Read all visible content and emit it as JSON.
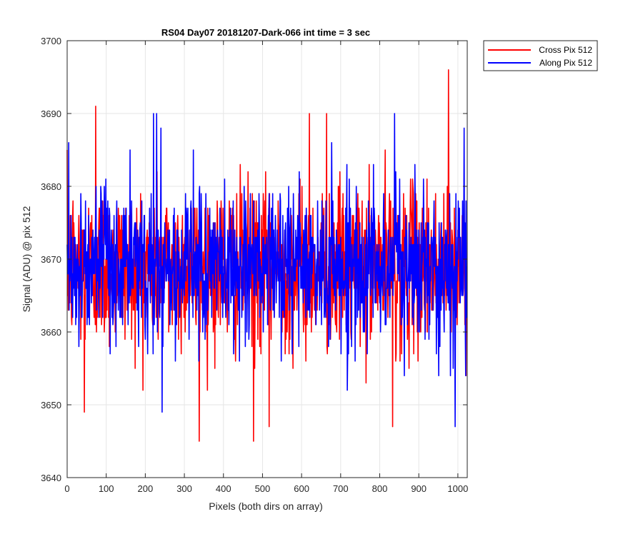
{
  "chart_data": {
    "type": "line",
    "title": "RS04 Day07 20181207-Dark-066 int time = 3 sec",
    "xlabel": "Pixels (both dirs on array)",
    "ylabel": "Signal (ADU) @ pix 512",
    "xlim": [
      0,
      1024
    ],
    "ylim": [
      3640,
      3700
    ],
    "xticks": [
      0,
      100,
      200,
      300,
      400,
      500,
      600,
      700,
      800,
      900,
      1000
    ],
    "yticks": [
      3640,
      3650,
      3660,
      3670,
      3680,
      3690,
      3700
    ],
    "grid": true,
    "legend": {
      "location": "outside-top-right"
    },
    "x_step": 1,
    "series": [
      {
        "name": "Cross Pix 512",
        "color": "#ff0000",
        "description": "noisy dark-frame signal, approx mean 3669 ADU, std ~5.5 ADU; notable extremes read from figure",
        "mean": 3669,
        "notable_points": [
          {
            "x": 73,
            "y": 3691
          },
          {
            "x": 44,
            "y": 3649
          },
          {
            "x": 338,
            "y": 3645
          },
          {
            "x": 477,
            "y": 3645
          },
          {
            "x": 517,
            "y": 3647
          },
          {
            "x": 620,
            "y": 3690
          },
          {
            "x": 664,
            "y": 3690
          },
          {
            "x": 833,
            "y": 3647
          },
          {
            "x": 976,
            "y": 3696
          }
        ],
        "values": [
          3663,
          3664,
          3672,
          3660,
          3675,
          3663,
          3667,
          3664,
          3666,
          3670,
          3672,
          3682,
          3663,
          3658,
          3666,
          3660,
          3671,
          3677,
          3658,
          3663,
          3666,
          3663,
          3666,
          3664,
          3661,
          3673,
          3667,
          3665,
          3667,
          3672,
          3669,
          3665,
          3661,
          3667,
          3668,
          3669,
          3662,
          3672,
          3668,
          3664,
          3677,
          3666,
          3664,
          3664,
          3670,
          3664,
          3670,
          3675,
          3665,
          3663,
          3661,
          3668,
          3664,
          3665,
          3671,
          3667,
          3673,
          3667,
          3666,
          3676,
          3675,
          3665,
          3665,
          3678,
          3672,
          3681,
          3669,
          3673,
          3663,
          3677,
          3665,
          3674,
          3672,
          3669,
          3663,
          3664,
          3676,
          3673,
          3667,
          3671,
          3674,
          3671,
          3670,
          3677,
          3664,
          3666,
          3665,
          3664,
          3672,
          3659,
          3676,
          3662,
          3663,
          3667,
          3661,
          3662,
          3669,
          3672,
          3666,
          3675,
          3677,
          3664,
          3662,
          3664,
          3666,
          3667,
          3667,
          3676,
          3661,
          3677,
          3669,
          3666,
          3670,
          3675,
          3675,
          3670,
          3661,
          3668,
          3670,
          3671,
          3668,
          3670,
          3664,
          3672,
          3665,
          3667,
          3671,
          3674,
          3669,
          3671,
          3676,
          3668,
          3673,
          3670,
          3670,
          3670,
          3674,
          3672,
          3668,
          3666,
          3665,
          3671,
          3674,
          3667,
          3669,
          3666,
          3659,
          3675,
          3671,
          3673,
          3661,
          3672,
          3672,
          3663,
          3667,
          3673,
          3671,
          3667,
          3673,
          3672,
          3668,
          3668,
          3675,
          3673,
          3670,
          3672,
          3663,
          3666,
          3660,
          3674,
          3663,
          3667,
          3668,
          3668,
          3677,
          3676,
          3662,
          3666,
          3668,
          3677,
          3676,
          3662,
          3668,
          3668,
          3665,
          3664,
          3665,
          3662,
          3659,
          3665,
          3672,
          3669,
          3667,
          3669,
          3669,
          3665,
          3672,
          3670,
          3666,
          3672,
          3670,
          3673,
          3671,
          3671,
          3665,
          3677,
          3666,
          3669,
          3664,
          3671,
          3673,
          3669,
          3675,
          3669,
          3670,
          3669,
          3667,
          3666,
          3665,
          3674,
          3665,
          3667,
          3673,
          3670,
          3664,
          3671,
          3662,
          3665,
          3674,
          3662,
          3662,
          3676,
          3667,
          3668,
          3664,
          3670,
          3667,
          3670,
          3674,
          3667,
          3675,
          3661,
          3668,
          3662,
          3669,
          3674,
          3668,
          3673,
          3663,
          3667,
          3670,
          3670,
          3673,
          3669,
          3673,
          3665,
          3666,
          3661,
          3670,
          3664,
          3666,
          3668,
          3663,
          3662,
          3673,
          3674,
          3670,
          3668,
          3671,
          3670,
          3669,
          3668,
          3671,
          3675,
          3667,
          3668,
          3669,
          3680,
          3666,
          3666,
          3665,
          3677,
          3671,
          3667,
          3675,
          3670,
          3674,
          3665,
          3673,
          3670,
          3672,
          3670,
          3666,
          3662,
          3676,
          3672,
          3670,
          3668,
          3662,
          3668,
          3663,
          3665,
          3668,
          3673,
          3669,
          3671,
          3664,
          3672,
          3668,
          3669,
          3661,
          3671,
          3665,
          3666,
          3669,
          3676,
          3669,
          3670,
          3669,
          3675,
          3669,
          3670,
          3670,
          3671,
          3664,
          3670,
          3670,
          3678,
          3677,
          3670,
          3668,
          3669,
          3677,
          3664,
          3665,
          3675,
          3670,
          3668,
          3664,
          3671,
          3668,
          3666,
          3667,
          3672,
          3671,
          3667,
          3661,
          3667,
          3669,
          3670,
          3672,
          3671,
          3672,
          3671,
          3665,
          3663,
          3674,
          3668,
          3668,
          3665,
          3665,
          3662,
          3670,
          3674,
          3665,
          3675,
          3676,
          3669,
          3673,
          3671,
          3669,
          3670,
          3667,
          3671,
          3667,
          3664,
          3668,
          3672,
          3670,
          3670,
          3674,
          3670,
          3664,
          3669,
          3666,
          3668,
          3675,
          3673,
          3668,
          3668,
          3668,
          3671,
          3674,
          3667,
          3674,
          3669,
          3675,
          3672,
          3675,
          3667,
          3672,
          3670,
          3662,
          3669,
          3667,
          3668,
          3671,
          3670,
          3671,
          3671,
          3671,
          3669,
          3664,
          3671,
          3667,
          3666,
          3670,
          3665,
          3675,
          3668,
          3669,
          3667,
          3671,
          3669,
          3673,
          3673,
          3666,
          3670,
          3667,
          3672,
          3668,
          3670,
          3671,
          3671,
          3667,
          3670,
          3670,
          3670,
          3671,
          3675,
          3665,
          3669,
          3669,
          3671,
          3670,
          3673,
          3670,
          3665,
          3671,
          3672,
          3670,
          3668,
          3666,
          3669,
          3671,
          3666,
          3666,
          3671,
          3667,
          3674,
          3668,
          3669,
          3670,
          3670,
          3674,
          3670,
          3670,
          3671,
          3673,
          3665,
          3672,
          3667,
          3671,
          3669,
          3673,
          3672,
          3667,
          3669,
          3673,
          3668,
          3669,
          3666,
          3669,
          3671,
          3674,
          3667,
          3672,
          3666,
          3669,
          3670,
          3666,
          3670,
          3668,
          3669,
          3674,
          3668,
          3668,
          3669,
          3668,
          3664,
          3668,
          3671,
          3675,
          3669,
          3670,
          3669,
          3669,
          3668,
          3671,
          3667,
          3666,
          3667,
          3670,
          3667,
          3669,
          3664,
          3671,
          3667,
          3672,
          3670,
          3669,
          3666,
          3671,
          3670,
          3672,
          3668,
          3671,
          3669,
          3673,
          3664,
          3667,
          3673,
          3667,
          3670,
          3674,
          3668,
          3667,
          3671,
          3671,
          3673,
          3671,
          3665,
          3676,
          3668,
          3673,
          3672,
          3667,
          3673,
          3670,
          3670,
          3672,
          3670,
          3667,
          3670,
          3669,
          3672,
          3669,
          3672,
          3670,
          3670,
          3666,
          3671,
          3669,
          3672,
          3666,
          3670,
          3666,
          3670,
          3670,
          3669,
          3672,
          3667,
          3668,
          3672,
          3671,
          3666,
          3670,
          3666,
          3668,
          3669,
          3668,
          3674,
          3668,
          3667,
          3669,
          3675,
          3671,
          3669,
          3668,
          3668,
          3673,
          3669,
          3667,
          3670,
          3668,
          3669,
          3668,
          3671,
          3670,
          3670,
          3669,
          3672,
          3670,
          3665,
          3672,
          3670,
          3668,
          3670,
          3673,
          3667,
          3672,
          3664,
          3666,
          3670,
          3668,
          3670,
          3670,
          3670,
          3664,
          3671,
          3670,
          3670,
          3673,
          3668,
          3671,
          3671,
          3666,
          3669,
          3672,
          3669,
          3667,
          3668,
          3670,
          3669,
          3671,
          3666,
          3669,
          3668,
          3671,
          3667,
          3670,
          3669,
          3669,
          3672,
          3671,
          3668,
          3668,
          3669,
          3670,
          3670,
          3666,
          3674,
          3669,
          3672,
          3670,
          3670,
          3668,
          3670,
          3670,
          3670,
          3668,
          3667,
          3669,
          3670,
          3670,
          3671,
          3668,
          3671,
          3668,
          3672,
          3669,
          3668,
          3669,
          3670,
          3670,
          3667,
          3668,
          3670,
          3672,
          3668,
          3672,
          3671,
          3668,
          3669,
          3669,
          3671,
          3669,
          3667,
          3669,
          3669,
          3670,
          3669,
          3669,
          3671,
          3668,
          3670,
          3667,
          3670,
          3670,
          3668,
          3669,
          3670,
          3671,
          3669,
          3670,
          3668,
          3668,
          3670,
          3668,
          3670,
          3670,
          3670,
          3670,
          3668,
          3670,
          3669,
          3669,
          3670,
          3669,
          3669,
          3669,
          3670,
          3670,
          3671,
          3669,
          3670,
          3670,
          3669,
          3669,
          3669,
          3668,
          3670,
          3670,
          3669,
          3669,
          3670,
          3669,
          3670,
          3670,
          3669,
          3669,
          3670,
          3669,
          3669,
          3670,
          3669,
          3669,
          3669,
          3670,
          3669,
          3669,
          3669,
          3669,
          3669,
          3669,
          3669,
          3669,
          3669,
          3669,
          3669,
          3669,
          3669,
          3669,
          3669,
          3669,
          3669,
          3669,
          3669,
          3669,
          3669,
          3669,
          3669,
          3669,
          3669,
          3669,
          3669,
          3669,
          3669,
          3669,
          3669,
          3669,
          3669,
          3669,
          3669,
          3669,
          3669,
          3669,
          3669,
          3669,
          3669,
          3669,
          3669,
          3669,
          3669,
          3669,
          3669,
          3669,
          3669,
          3669,
          3669,
          3669,
          3669,
          3669,
          3669,
          3669,
          3669,
          3669,
          3669,
          3669,
          3669,
          3669,
          3669,
          3669,
          3669,
          3669,
          3669,
          3669,
          3669,
          3669,
          3669,
          3669,
          3669,
          3669,
          3669,
          3669,
          3669,
          3669,
          3669,
          3669,
          3669,
          3669,
          3669,
          3669,
          3669,
          3669,
          3669,
          3669,
          3669,
          3669,
          3669,
          3669,
          3669,
          3669,
          3669,
          3669,
          3669,
          3669,
          3669,
          3669,
          3669,
          3669,
          3669,
          3669,
          3669,
          3669,
          3669,
          3669,
          3669,
          3669,
          3669,
          3669,
          3669,
          3669,
          3669,
          3669,
          3669,
          3669,
          3669,
          3669,
          3669,
          3669,
          3669,
          3669,
          3669,
          3669,
          3669,
          3669,
          3669,
          3669,
          3669,
          3669,
          3669,
          3669,
          3669,
          3669,
          3669,
          3669,
          3669,
          3669,
          3669,
          3669,
          3669,
          3669,
          3669,
          3669,
          3669,
          3669,
          3669,
          3669,
          3669,
          3669,
          3669,
          3669,
          3669,
          3669,
          3669,
          3669,
          3669,
          3669,
          3669,
          3669,
          3669,
          3669,
          3669,
          3669,
          3669,
          3669,
          3669,
          3669,
          3669,
          3669,
          3669,
          3669,
          3669,
          3669,
          3669,
          3669,
          3669,
          3669,
          3669,
          3669,
          3669,
          3669,
          3669,
          3669,
          3669,
          3669,
          3669,
          3669,
          3669,
          3669,
          3669,
          3669,
          3669,
          3669,
          3669,
          3669,
          3669,
          3669,
          3669,
          3669,
          3669,
          3669,
          3669,
          3669,
          3669,
          3669,
          3669,
          3669,
          3669,
          3669,
          3669,
          3669,
          3669,
          3669,
          3669,
          3669,
          3669,
          3669,
          3669,
          3669,
          3669,
          3669,
          3669,
          3669,
          3669,
          3669,
          3669,
          3669,
          3669,
          3669,
          3669,
          3669,
          3669,
          3669,
          3669,
          3669,
          3669,
          3669,
          3669,
          3669,
          3669,
          3669,
          3669,
          3669,
          3669,
          3669,
          3669,
          3669,
          3669,
          3669,
          3669,
          3669,
          3669,
          3669,
          3669,
          3669,
          3669,
          3669,
          3669,
          3669,
          3669
        ]
      },
      {
        "name": "Along Pix 512",
        "color": "#0000ff",
        "description": "noisy dark-frame signal, approx mean 3669 ADU, std ~5 ADU; notable extremes read from figure",
        "mean": 3669,
        "notable_points": [
          {
            "x": 4,
            "y": 3686
          },
          {
            "x": 221,
            "y": 3690
          },
          {
            "x": 229,
            "y": 3690
          },
          {
            "x": 240,
            "y": 3688
          },
          {
            "x": 243,
            "y": 3649
          },
          {
            "x": 838,
            "y": 3690
          },
          {
            "x": 993,
            "y": 3647
          },
          {
            "x": 1016,
            "y": 3688
          },
          {
            "x": 1020,
            "y": 3654
          }
        ],
        "values": []
      }
    ]
  }
}
